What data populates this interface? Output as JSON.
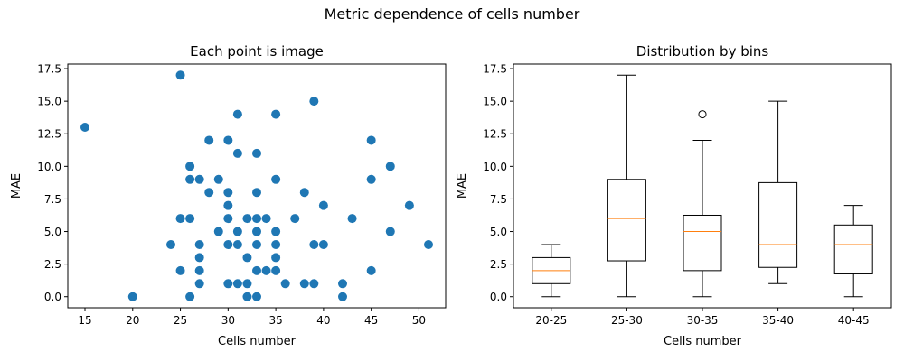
{
  "figure": {
    "suptitle": "Metric dependence of cells number"
  },
  "chart_data": [
    {
      "type": "scatter",
      "title": "Each point is image",
      "xlabel": "Cells number",
      "ylabel": "MAE",
      "xlim": [
        13.2,
        52.8
      ],
      "ylim": [
        -0.85,
        17.85
      ],
      "xticks": [
        15,
        20,
        25,
        30,
        35,
        40,
        45,
        50
      ],
      "yticks": [
        0.0,
        2.5,
        5.0,
        7.5,
        10.0,
        12.5,
        15.0,
        17.5
      ],
      "ytick_labels": [
        "0.0",
        "2.5",
        "5.0",
        "7.5",
        "10.0",
        "12.5",
        "15.0",
        "17.5"
      ],
      "color": "#1f77b4",
      "points": [
        [
          15,
          13
        ],
        [
          20,
          0
        ],
        [
          24,
          4
        ],
        [
          25,
          17
        ],
        [
          25,
          6
        ],
        [
          25,
          2
        ],
        [
          26,
          10
        ],
        [
          26,
          9
        ],
        [
          26,
          6
        ],
        [
          26,
          0
        ],
        [
          27,
          9
        ],
        [
          27,
          4
        ],
        [
          27,
          3
        ],
        [
          27,
          2
        ],
        [
          27,
          1
        ],
        [
          28,
          12
        ],
        [
          28,
          8
        ],
        [
          29,
          9
        ],
        [
          29,
          5
        ],
        [
          30,
          12
        ],
        [
          30,
          8
        ],
        [
          30,
          7
        ],
        [
          30,
          6
        ],
        [
          30,
          4
        ],
        [
          30,
          1
        ],
        [
          31,
          14
        ],
        [
          31,
          11
        ],
        [
          31,
          5
        ],
        [
          31,
          4
        ],
        [
          31,
          1
        ],
        [
          32,
          6
        ],
        [
          32,
          3
        ],
        [
          32,
          1
        ],
        [
          32,
          0
        ],
        [
          33,
          11
        ],
        [
          33,
          8
        ],
        [
          33,
          6
        ],
        [
          33,
          5
        ],
        [
          33,
          4
        ],
        [
          33,
          2
        ],
        [
          33,
          0
        ],
        [
          34,
          6
        ],
        [
          34,
          2
        ],
        [
          35,
          14
        ],
        [
          35,
          9
        ],
        [
          35,
          5
        ],
        [
          35,
          4
        ],
        [
          35,
          3
        ],
        [
          35,
          2
        ],
        [
          36,
          1
        ],
        [
          37,
          6
        ],
        [
          38,
          8
        ],
        [
          38,
          1
        ],
        [
          39,
          15
        ],
        [
          39,
          4
        ],
        [
          39,
          1
        ],
        [
          40,
          7
        ],
        [
          40,
          4
        ],
        [
          42,
          1
        ],
        [
          42,
          0
        ],
        [
          43,
          6
        ],
        [
          45,
          12
        ],
        [
          45,
          9
        ],
        [
          45,
          2
        ],
        [
          47,
          10
        ],
        [
          47,
          5
        ],
        [
          49,
          7
        ],
        [
          51,
          4
        ]
      ]
    },
    {
      "type": "box",
      "title": "Distribution by bins",
      "xlabel": "Cells number",
      "ylabel": "MAE",
      "ylim": [
        -0.85,
        17.85
      ],
      "yticks": [
        0.0,
        2.5,
        5.0,
        7.5,
        10.0,
        12.5,
        15.0,
        17.5
      ],
      "ytick_labels": [
        "0.0",
        "2.5",
        "5.0",
        "7.5",
        "10.0",
        "12.5",
        "15.0",
        "17.5"
      ],
      "categories": [
        "20-25",
        "25-30",
        "30-35",
        "35-40",
        "40-45"
      ],
      "median_color": "#ff7f0e",
      "boxes": [
        {
          "whislo": 0,
          "q1": 1,
          "med": 2,
          "q3": 3,
          "whishi": 4,
          "fliers": []
        },
        {
          "whislo": 0,
          "q1": 2.75,
          "med": 6,
          "q3": 9,
          "whishi": 17,
          "fliers": []
        },
        {
          "whislo": 0,
          "q1": 2,
          "med": 5,
          "q3": 6.25,
          "whishi": 12,
          "fliers": [
            14
          ]
        },
        {
          "whislo": 1,
          "q1": 2.25,
          "med": 4,
          "q3": 8.75,
          "whishi": 15,
          "fliers": []
        },
        {
          "whislo": 0,
          "q1": 1.75,
          "med": 4,
          "q3": 5.5,
          "whishi": 7,
          "fliers": []
        }
      ]
    }
  ]
}
